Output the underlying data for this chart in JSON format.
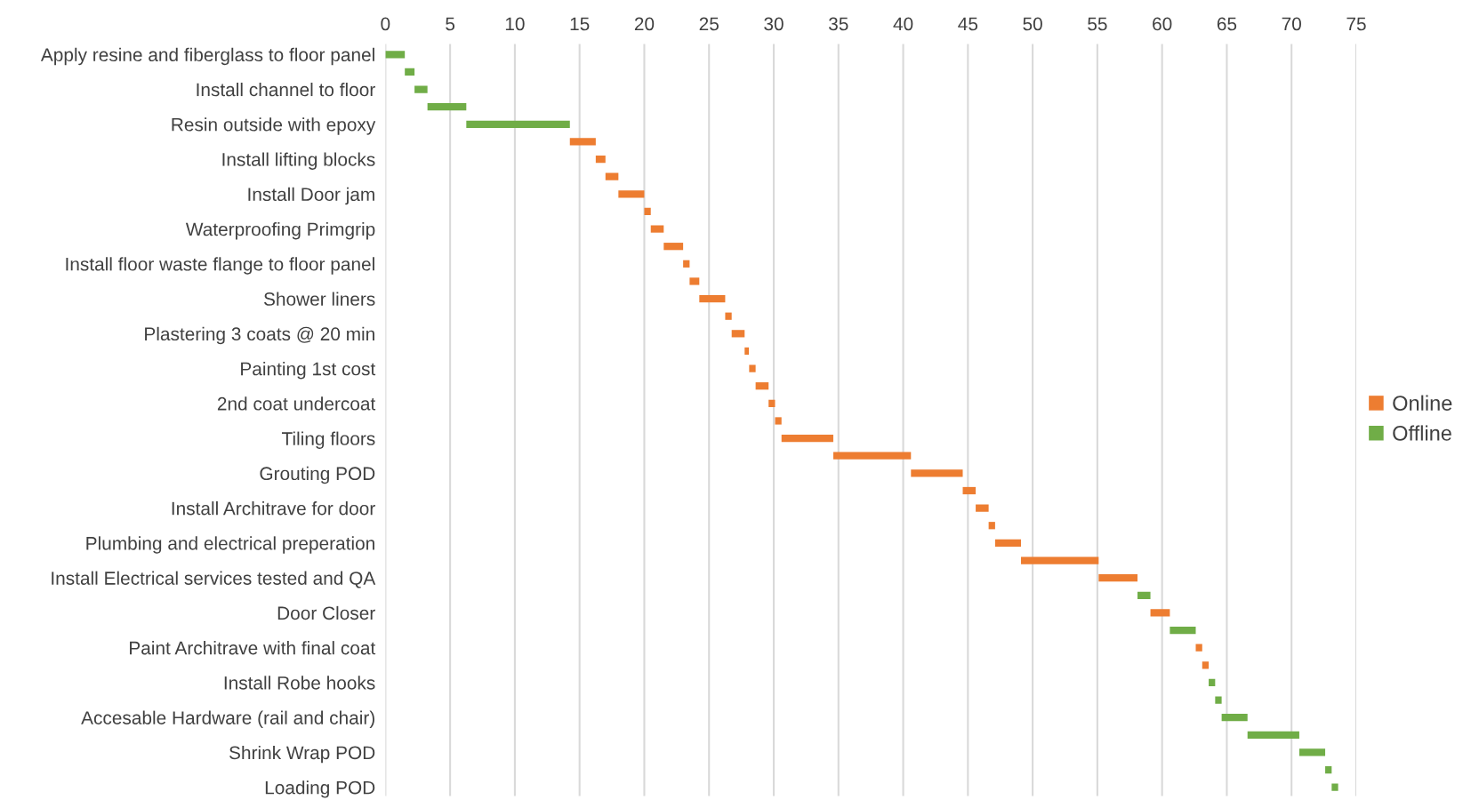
{
  "chart_data": {
    "type": "bar",
    "orientation": "horizontal",
    "categories": [
      "Apply resine and fiberglass to floor panel",
      null,
      "Install channel to floor",
      null,
      "Resin outside with epoxy",
      null,
      "Install lifting blocks",
      null,
      "Install Door jam",
      null,
      "Waterproofing Primgrip",
      null,
      "Install floor waste flange to floor panel",
      null,
      "Shower liners",
      null,
      "Plastering 3 coats @ 20 min",
      null,
      "Painting 1st cost",
      null,
      "2nd coat undercoat",
      null,
      "Tiling floors",
      null,
      "Grouting POD",
      null,
      "Install Architrave for door",
      null,
      "Plumbing and electrical preperation",
      null,
      "Install Electrical services tested and QA",
      null,
      "Door Closer",
      null,
      "Paint Architrave with final coat",
      null,
      "Install Robe hooks",
      null,
      "Accesable Hardware (rail and chair)",
      null,
      "Shrink Wrap POD",
      null,
      "Loading POD"
    ],
    "series": [
      {
        "name": "Online",
        "color": "#ed7d31",
        "values": [
          null,
          null,
          null,
          null,
          null,
          2,
          0.75,
          1,
          2,
          0.5,
          1,
          1.5,
          0.5,
          0.75,
          2,
          0.5,
          1,
          0.33,
          0.5,
          1,
          0.5,
          0.5,
          4,
          6,
          4,
          1,
          1,
          0.5,
          2,
          6,
          3,
          null,
          1.5,
          null,
          0.5,
          0.5,
          null,
          null,
          null,
          null,
          null,
          null,
          null
        ],
        "base": [
          null,
          null,
          null,
          null,
          null,
          14.25,
          16.25,
          17,
          18,
          20,
          20.5,
          21.5,
          23,
          23.5,
          24.25,
          26.25,
          26.75,
          27.75,
          28.1,
          28.6,
          29.6,
          30.1,
          30.6,
          34.6,
          40.6,
          44.6,
          45.6,
          46.6,
          47.1,
          49.1,
          55.1,
          null,
          59.1,
          null,
          62.6,
          63.1,
          null,
          null,
          null,
          null,
          null,
          null,
          null
        ]
      },
      {
        "name": "Offline",
        "color": "#70ad47",
        "values": [
          1.5,
          0.75,
          1,
          3,
          8,
          null,
          null,
          null,
          null,
          null,
          null,
          null,
          null,
          null,
          null,
          null,
          null,
          null,
          null,
          null,
          null,
          null,
          null,
          null,
          null,
          null,
          null,
          null,
          null,
          null,
          null,
          1,
          null,
          2,
          null,
          null,
          0.5,
          0.5,
          2,
          4,
          2,
          0.5,
          0.5
        ],
        "base": [
          0,
          1.5,
          2.25,
          3.25,
          6.25,
          null,
          null,
          null,
          null,
          null,
          null,
          null,
          null,
          null,
          null,
          null,
          null,
          null,
          null,
          null,
          null,
          null,
          null,
          null,
          null,
          null,
          null,
          null,
          null,
          null,
          null,
          58.1,
          null,
          60.6,
          null,
          null,
          63.6,
          64.1,
          64.6,
          66.6,
          70.6,
          72.6,
          73.1
        ]
      }
    ],
    "xlim": [
      0,
      75
    ],
    "xticks": [
      0,
      5,
      10,
      15,
      20,
      25,
      30,
      35,
      40,
      45,
      50,
      55,
      60,
      65,
      70,
      75
    ],
    "grid": "x",
    "legend": "right"
  }
}
